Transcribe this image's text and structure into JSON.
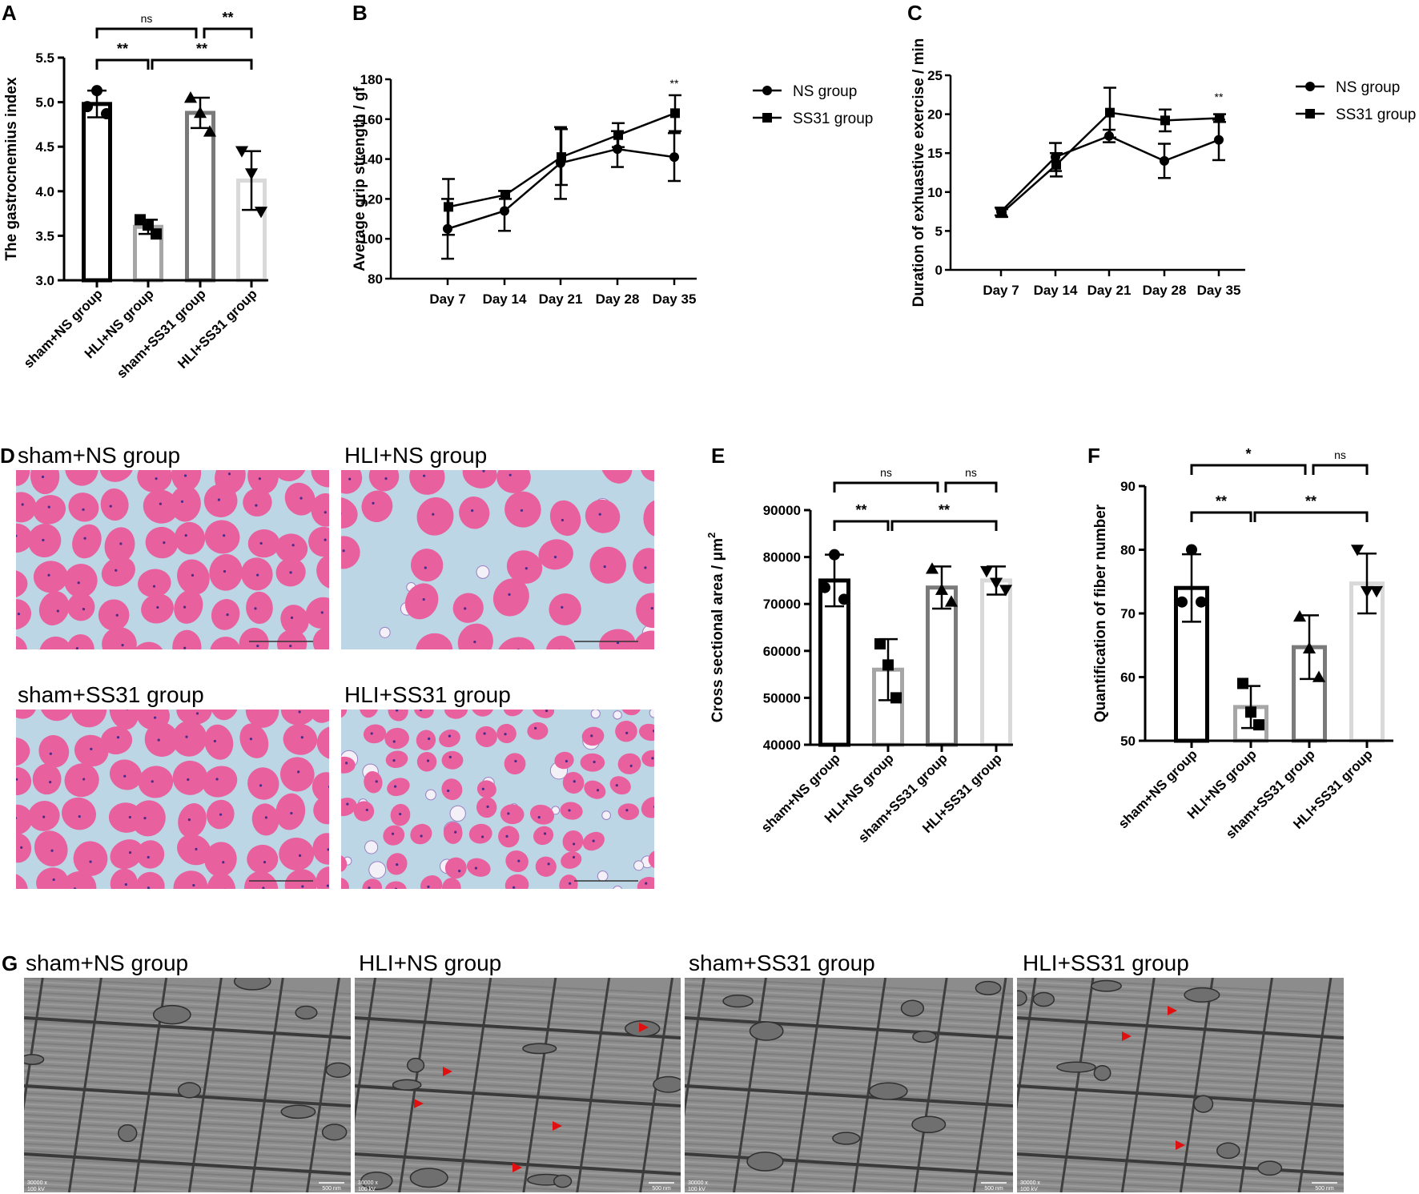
{
  "panel_labels": {
    "A": "A",
    "B": "B",
    "C": "C",
    "D": "D",
    "E": "E",
    "F": "F",
    "G": "G"
  },
  "colors": {
    "sham_ns": "#000000",
    "hli_ns": "#a6a6a6",
    "sham_ss31": "#7a7a7a",
    "hli_ss31": "#d9d9d9",
    "he_stain": "#e8609e",
    "he_background": "#bcd6e6",
    "em": "#8c8c8c",
    "arrow": "#e01010"
  },
  "bar_categories": [
    "sham+NS group",
    "HLI+NS group",
    "sham+SS31 group",
    "HLI+SS31 group"
  ],
  "line_legend": [
    "NS group",
    "SS31 group"
  ],
  "line_categories": [
    "Day 7",
    "Day 14",
    "Day 21",
    "Day 28",
    "Day 35"
  ],
  "chart_data": [
    {
      "id": "A",
      "type": "bar",
      "ylabel": "The gastrocnemius index",
      "ylim": [
        3.0,
        5.5
      ],
      "yticks": [
        "3.0",
        "3.5",
        "4.0",
        "4.5",
        "5.0",
        "5.5"
      ],
      "categories": [
        "sham+NS group",
        "HLI+NS group",
        "sham+SS31 group",
        "HLI+SS31 group"
      ],
      "values": [
        4.98,
        3.6,
        4.88,
        4.12
      ],
      "errors": [
        0.15,
        0.08,
        0.17,
        0.33
      ],
      "points": [
        [
          5.13,
          4.95,
          4.87
        ],
        [
          3.68,
          3.62,
          3.52
        ],
        [
          5.05,
          4.88,
          4.67
        ],
        [
          4.45,
          4.2,
          3.77
        ]
      ],
      "markers": [
        "circle",
        "square",
        "triangle",
        "triangle-down"
      ],
      "significance": [
        {
          "label": "**",
          "from": 0,
          "to": 1,
          "level": 1
        },
        {
          "label": "**",
          "from": 1,
          "to": 3,
          "level": 1
        },
        {
          "label": "ns",
          "from": 0,
          "to": 2,
          "level": 2
        },
        {
          "label": "**",
          "from": 2,
          "to": 3,
          "level": 2
        }
      ]
    },
    {
      "id": "B",
      "type": "line",
      "ylabel": "Average grip strength / gf",
      "ylim": [
        80,
        180
      ],
      "yticks": [
        "80",
        "100",
        "120",
        "140",
        "160",
        "180"
      ],
      "categories": [
        "Day 7",
        "Day 14",
        "Day 21",
        "Day 28",
        "Day 35"
      ],
      "series": [
        {
          "name": "NS group",
          "marker": "circle",
          "values": [
            105,
            114,
            138,
            145,
            141
          ],
          "errors": [
            15,
            10,
            18,
            9,
            12
          ]
        },
        {
          "name": "SS31 group",
          "marker": "square",
          "values": [
            116,
            122,
            141,
            152,
            163
          ],
          "errors": [
            14,
            2,
            14,
            6,
            9
          ]
        }
      ],
      "annotations": [
        {
          "label": "**",
          "category": "Day 35"
        }
      ],
      "legend_position": "right"
    },
    {
      "id": "C",
      "type": "line",
      "ylabel": "Duration of exhuastive exercise / min",
      "ylim": [
        0,
        25
      ],
      "yticks": [
        "0",
        "5",
        "10",
        "15",
        "20",
        "25"
      ],
      "categories": [
        "Day 7",
        "Day 14",
        "Day 21",
        "Day 28",
        "Day 35"
      ],
      "series": [
        {
          "name": "NS group",
          "marker": "circle",
          "values": [
            7.5,
            14.5,
            17.2,
            14.0,
            16.7
          ],
          "errors": [
            0.5,
            1.8,
            0.8,
            2.2,
            2.6
          ]
        },
        {
          "name": "SS31 group",
          "marker": "square",
          "values": [
            7.3,
            13.5,
            20.2,
            19.2,
            19.5
          ],
          "errors": [
            0.5,
            1.5,
            3.2,
            1.4,
            0.5
          ]
        }
      ],
      "annotations": [
        {
          "label": "**",
          "category": "Day 35"
        }
      ],
      "legend_position": "right"
    },
    {
      "id": "E",
      "type": "bar",
      "ylabel": "Cross sectional area / μm",
      "ylabel_sup": "2",
      "ylim": [
        40000,
        90000
      ],
      "yticks": [
        "40000",
        "50000",
        "60000",
        "70000",
        "80000",
        "90000"
      ],
      "categories": [
        "sham+NS group",
        "HLI+NS group",
        "sham+SS31 group",
        "HLI+SS31 group"
      ],
      "values": [
        75000,
        56000,
        73500,
        75000
      ],
      "errors": [
        5500,
        6500,
        4500,
        3000
      ],
      "points": [
        [
          80500,
          73500,
          71000
        ],
        [
          61500,
          57000,
          50000
        ],
        [
          77500,
          73000,
          70500
        ],
        [
          77000,
          74500,
          73000
        ]
      ],
      "markers": [
        "circle",
        "square",
        "triangle",
        "triangle-down"
      ],
      "significance": [
        {
          "label": "**",
          "from": 0,
          "to": 1,
          "level": 1
        },
        {
          "label": "**",
          "from": 1,
          "to": 3,
          "level": 1
        },
        {
          "label": "ns",
          "from": 0,
          "to": 2,
          "level": 2
        },
        {
          "label": "ns",
          "from": 2,
          "to": 3,
          "level": 2
        }
      ]
    },
    {
      "id": "F",
      "type": "bar",
      "ylabel": "Quantification of fiber number",
      "ylim": [
        50,
        90
      ],
      "yticks": [
        "50",
        "60",
        "70",
        "80",
        "90"
      ],
      "categories": [
        "sham+NS group",
        "HLI+NS group",
        "sham+SS31 group",
        "HLI+SS31 group"
      ],
      "values": [
        74,
        55.3,
        64.7,
        74.7
      ],
      "errors": [
        5.3,
        3.3,
        5.0,
        4.7
      ],
      "points": [
        [
          80,
          71.8,
          71.8
        ],
        [
          59,
          54.5,
          52.5
        ],
        [
          69.5,
          64.5,
          60
        ],
        [
          80,
          73.5,
          73.5
        ]
      ],
      "markers": [
        "circle",
        "square",
        "triangle",
        "triangle-down"
      ],
      "significance": [
        {
          "label": "**",
          "from": 0,
          "to": 1,
          "level": 1
        },
        {
          "label": "**",
          "from": 1,
          "to": 3,
          "level": 1
        },
        {
          "label": "*",
          "from": 0,
          "to": 2,
          "level": 2
        },
        {
          "label": "ns",
          "from": 2,
          "to": 3,
          "level": 2
        }
      ]
    }
  ],
  "he_images": {
    "titles": [
      "sham+NS group",
      "HLI+NS group",
      "sham+SS31 group",
      "HLI+SS31 group"
    ]
  },
  "em_images": {
    "titles": [
      "sham+NS group",
      "HLI+NS group",
      "sham+SS31 group",
      "HLI+SS31 group"
    ],
    "magnification": "30000 x",
    "voltage": "100 kV",
    "scale": "500 nm"
  }
}
